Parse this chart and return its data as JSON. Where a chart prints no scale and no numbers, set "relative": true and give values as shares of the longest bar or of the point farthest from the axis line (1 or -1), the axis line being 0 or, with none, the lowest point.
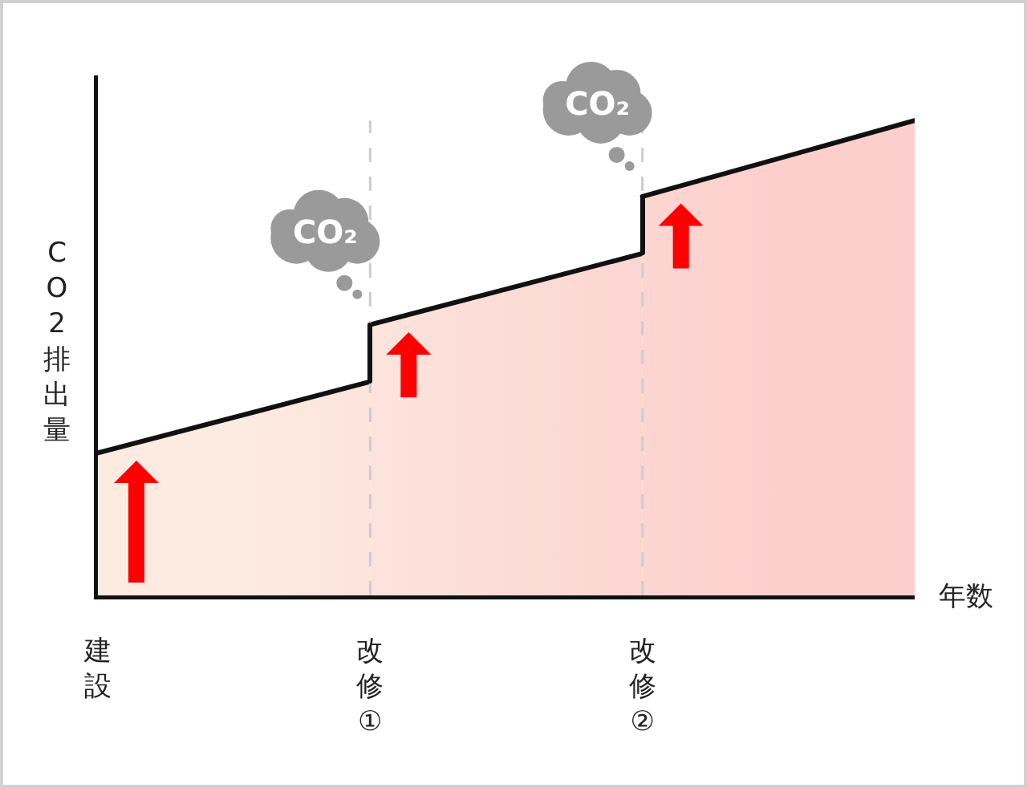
{
  "chart_data": {
    "type": "area",
    "relative": true,
    "ylabel": "CO2排出量",
    "xlabel": "年数",
    "categories": [
      "建設",
      "改修①",
      "改修②",
      null
    ],
    "series": [
      {
        "color": "#fdebe2",
        "values": [
          0.3,
          0.45,
          null,
          null
        ]
      },
      {
        "color": "#fcdcd6",
        "values": [
          null,
          0.57,
          0.72,
          null
        ]
      },
      {
        "color": "#fccfcd",
        "values": [
          null,
          null,
          0.84,
          1
        ]
      }
    ],
    "ref_lines": [
      {
        "axis": "x",
        "value": "改修①",
        "color": "#c9ced4",
        "line_style": "dashed"
      },
      {
        "axis": "x",
        "value": "改修②",
        "color": "#c9ced4",
        "line_style": "dashed"
      }
    ],
    "annotations": [
      {
        "text": "CO₂",
        "x": "改修①",
        "y": 0.57
      },
      {
        "text": "CO₂",
        "x": "改修②",
        "y": 0.84
      }
    ]
  }
}
